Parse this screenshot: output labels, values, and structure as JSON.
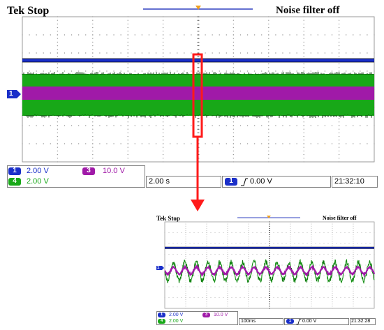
{
  "colors": {
    "ch1": "#1a2fc9",
    "ch3": "#a01aa8",
    "ch4": "#18a818",
    "highlight": "#ff1a1a",
    "grid": "#9a9a9a",
    "trigger_marker": "#f0a020"
  },
  "main_scope": {
    "title": "Tek Stop",
    "filter_status": "Noise filter off",
    "ch1_badge": "1",
    "ch1_scale": "2.00 V",
    "ch3_badge": "3",
    "ch3_scale": "10.0 V",
    "ch4_badge": "4",
    "ch4_scale": "2.00 V",
    "timebase": "2.00 s",
    "trigger_badge": "1",
    "trigger_level": "0.00 V",
    "clock": "21:32:10",
    "ch1_marker": "1"
  },
  "zoom_scope": {
    "title": "Tek Stop",
    "filter_status": "Noise filter off",
    "ch1_badge": "1",
    "ch1_scale": "2.00 V",
    "ch3_badge": "3",
    "ch3_scale": "10.0 V",
    "ch4_badge": "4",
    "ch4_scale": "2.00 V",
    "timebase": "100ms",
    "trigger_badge": "1",
    "trigger_level": "0.00 V",
    "clock": "21:32:28",
    "ch1_marker": "1"
  }
}
